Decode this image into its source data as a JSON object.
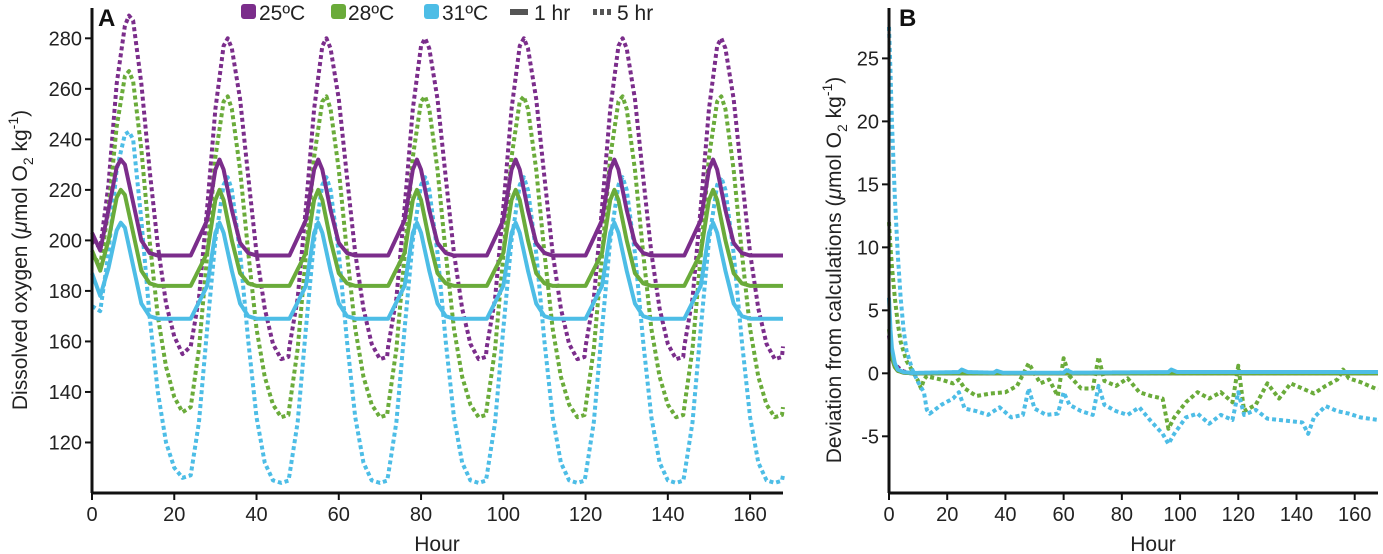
{
  "figure": {
    "legend": {
      "temps": [
        {
          "label": "25ºC",
          "color": "#7b2d8b"
        },
        {
          "label": "28ºC",
          "color": "#6aab3a"
        },
        {
          "label": "31ºC",
          "color": "#4dbde6"
        }
      ],
      "styles": [
        {
          "label": "1 hr",
          "dash": "solid"
        },
        {
          "label": "5 hr",
          "dash": "dotted"
        }
      ]
    }
  },
  "chart_data": [
    {
      "panel": "A",
      "type": "line",
      "title": "",
      "xlabel": "Hour",
      "ylabel": "Dissolved oxygen (μmol O2 kg-1)",
      "ylabel_parts": {
        "pre": "Dissolved oxygen (",
        "mu": "μ",
        "mol": "mol O",
        "sub": "2",
        "kg": " kg",
        "sup": "-1",
        "post": ")"
      },
      "xlim": [
        0,
        168
      ],
      "ylim": [
        100,
        292
      ],
      "xticks": [
        0,
        20,
        40,
        60,
        80,
        100,
        120,
        140,
        160
      ],
      "yticks": [
        120,
        140,
        160,
        180,
        200,
        220,
        240,
        260,
        280
      ],
      "period_hours": 24,
      "series": [
        {
          "name": "25ºC 1 hr",
          "temp": "25ºC",
          "interval": "1 hr",
          "color": "#7b2d8b",
          "dash": "solid",
          "x": [
            0,
            2,
            4,
            6,
            7,
            8,
            10,
            12,
            14,
            16,
            20,
            24,
            28,
            30,
            31,
            32,
            34,
            36,
            38,
            40,
            44,
            48
          ],
          "y": [
            203,
            196,
            212,
            229,
            232,
            230,
            215,
            200,
            195,
            194,
            194,
            194,
            208,
            228,
            232,
            228,
            212,
            199,
            195,
            194,
            194,
            194
          ]
        },
        {
          "name": "28ºC 1 hr",
          "temp": "28ºC",
          "interval": "1 hr",
          "color": "#6aab3a",
          "dash": "solid",
          "x": [
            0,
            2,
            4,
            6,
            7,
            8,
            10,
            12,
            14,
            16,
            20,
            24,
            28,
            30,
            31,
            32,
            34,
            36,
            38,
            40,
            44,
            48
          ],
          "y": [
            196,
            188,
            200,
            217,
            220,
            218,
            203,
            188,
            183,
            182,
            182,
            182,
            195,
            216,
            220,
            216,
            200,
            187,
            183,
            182,
            182,
            182
          ]
        },
        {
          "name": "31ºC 1 hr",
          "temp": "31ºC",
          "interval": "1 hr",
          "color": "#4dbde6",
          "dash": "solid",
          "x": [
            0,
            2,
            4,
            6,
            7,
            8,
            10,
            12,
            14,
            16,
            20,
            24,
            28,
            30,
            31,
            32,
            34,
            36,
            38,
            40,
            44,
            48
          ],
          "y": [
            187,
            178,
            189,
            204,
            207,
            205,
            190,
            175,
            170,
            169,
            169,
            169,
            182,
            203,
            207,
            203,
            188,
            175,
            170,
            169,
            169,
            169
          ]
        },
        {
          "name": "25ºC 5 hr",
          "temp": "25ºC",
          "interval": "5 hr",
          "color": "#7b2d8b",
          "dash": "dotted",
          "x": [
            0,
            2,
            4,
            6,
            8,
            9,
            10,
            12,
            14,
            16,
            18,
            20,
            22,
            24,
            26,
            28,
            30,
            32,
            33,
            34,
            36,
            38,
            40,
            42,
            44,
            46,
            48
          ],
          "y": [
            200,
            197,
            222,
            262,
            285,
            289,
            287,
            262,
            228,
            198,
            175,
            162,
            155,
            158,
            177,
            213,
            252,
            277,
            280,
            276,
            256,
            225,
            195,
            173,
            159,
            153,
            154
          ]
        },
        {
          "name": "28ºC 5 hr",
          "temp": "28ºC",
          "interval": "5 hr",
          "color": "#6aab3a",
          "dash": "dotted",
          "x": [
            0,
            2,
            4,
            6,
            8,
            9,
            10,
            12,
            14,
            16,
            18,
            20,
            22,
            24,
            26,
            28,
            30,
            32,
            33,
            34,
            36,
            38,
            40,
            42,
            44,
            46,
            48
          ],
          "y": [
            195,
            190,
            212,
            245,
            265,
            267,
            263,
            236,
            200,
            170,
            150,
            138,
            132,
            134,
            157,
            194,
            233,
            255,
            257,
            252,
            228,
            195,
            165,
            146,
            135,
            130,
            131
          ]
        },
        {
          "name": "31ºC 5 hr",
          "temp": "31ºC",
          "interval": "5 hr",
          "color": "#4dbde6",
          "dash": "dotted",
          "x": [
            0,
            2,
            4,
            6,
            8,
            9,
            10,
            12,
            14,
            16,
            18,
            20,
            22,
            24,
            26,
            28,
            30,
            32,
            33,
            34,
            36,
            38,
            40,
            42,
            44,
            46,
            48
          ],
          "y": [
            174,
            172,
            195,
            228,
            242,
            243,
            240,
            208,
            170,
            140,
            120,
            110,
            106,
            107,
            128,
            165,
            200,
            222,
            225,
            220,
            195,
            160,
            130,
            112,
            105,
            104,
            105
          ]
        }
      ]
    },
    {
      "panel": "B",
      "type": "line",
      "title": "",
      "xlabel": "Hour",
      "ylabel": "Deviation from calculations (μmol O2 kg-1)",
      "ylabel_parts": {
        "pre": "Deviation from calculations (",
        "mu": "μ",
        "mol": "mol O",
        "sub": "2",
        "kg": " kg",
        "sup": "-1",
        "post": ")"
      },
      "xlim": [
        0,
        168
      ],
      "ylim": [
        -9.5,
        29
      ],
      "xticks": [
        0,
        20,
        40,
        60,
        80,
        100,
        120,
        140,
        160
      ],
      "yticks": [
        -5,
        0,
        5,
        10,
        15,
        20,
        25
      ],
      "series": [
        {
          "name": "25ºC 1 hr",
          "color": "#7b2d8b",
          "dash": "solid",
          "x": [
            0,
            0.5,
            1,
            2,
            3,
            5,
            8,
            12,
            168
          ],
          "y": [
            3,
            2,
            1.2,
            0.5,
            0.2,
            0.05,
            0,
            0,
            0
          ]
        },
        {
          "name": "28ºC 1 hr",
          "color": "#6aab3a",
          "dash": "solid",
          "x": [
            0,
            0.5,
            1,
            2,
            3,
            5,
            8,
            12,
            168
          ],
          "y": [
            3.5,
            2.3,
            1.3,
            0.5,
            0.2,
            0.05,
            0,
            0,
            0
          ]
        },
        {
          "name": "31ºC 1 hr",
          "color": "#4dbde6",
          "dash": "solid",
          "x": [
            0,
            0.5,
            1,
            2,
            3,
            5,
            8,
            12,
            24,
            25,
            27,
            36,
            37,
            39,
            60,
            61,
            63,
            96,
            97,
            99,
            168
          ],
          "y": [
            6,
            3.5,
            2,
            0.8,
            0.3,
            0.1,
            0.03,
            0.05,
            0.1,
            0.3,
            0.1,
            0.05,
            0.2,
            0.05,
            0.05,
            0.25,
            0.05,
            0.1,
            0.3,
            0.1,
            0.1
          ]
        },
        {
          "name": "25ºC 5 hr",
          "color": "#7b2d8b",
          "dash": "dotted",
          "x": [
            0,
            1,
            2,
            3,
            4,
            5,
            7,
            9,
            12,
            168
          ],
          "y": [
            1.5,
            1.2,
            0.8,
            0.5,
            0.3,
            0.15,
            0.05,
            0,
            0,
            0
          ]
        },
        {
          "name": "28ºC 5 hr",
          "color": "#6aab3a",
          "dash": "dotted",
          "x": [
            0,
            0.5,
            1,
            2,
            3,
            4,
            6,
            8,
            10,
            11,
            12,
            13,
            14,
            18,
            22,
            24,
            26,
            30,
            35,
            40,
            44,
            48,
            52,
            55,
            58,
            60,
            62,
            66,
            70,
            72,
            74,
            78,
            82,
            86,
            90,
            94,
            96,
            98,
            102,
            106,
            110,
            114,
            118,
            120,
            122,
            126,
            130,
            134,
            138,
            142,
            146,
            150,
            154,
            156,
            158,
            162,
            168
          ],
          "y": [
            12,
            10,
            8.5,
            6,
            4,
            2.5,
            1,
            0.2,
            -0.6,
            -1.2,
            -0.5,
            -0.2,
            -0.3,
            -0.5,
            -0.8,
            -0.5,
            -1.2,
            -1.8,
            -1.6,
            -1.5,
            -1,
            0.8,
            -0.8,
            -0.5,
            -1.8,
            1.2,
            -0.2,
            -1.2,
            -1.2,
            1.3,
            -0.6,
            -1,
            -0.4,
            -1.5,
            -1.8,
            -2,
            -4.4,
            -3.5,
            -2.3,
            -1.5,
            -2,
            -1.5,
            -2.3,
            0.6,
            -3,
            -2.5,
            -0.8,
            -2,
            -0.8,
            -1.2,
            -1.6,
            -1,
            -0.5,
            0.3,
            -0.4,
            -0.7,
            -1.3
          ]
        },
        {
          "name": "31ºC 5 hr",
          "color": "#4dbde6",
          "dash": "dotted",
          "x": [
            0,
            0.5,
            1,
            2,
            3,
            4,
            5,
            6,
            8,
            10,
            12,
            13,
            14,
            18,
            22,
            24,
            26,
            30,
            34,
            38,
            42,
            46,
            48,
            50,
            54,
            58,
            60,
            62,
            66,
            70,
            72,
            74,
            78,
            82,
            86,
            90,
            94,
            96,
            98,
            102,
            106,
            110,
            114,
            118,
            120,
            122,
            126,
            130,
            134,
            138,
            142,
            144,
            146,
            150,
            154,
            158,
            162,
            168
          ],
          "y": [
            27.5,
            24,
            20,
            14,
            9.5,
            6,
            3.5,
            1.8,
            0.3,
            -0.7,
            -1.5,
            -2.9,
            -3.2,
            -2.5,
            -2,
            -1.5,
            -2.8,
            -3,
            -3.3,
            -2.7,
            -3.5,
            -3.3,
            -1.2,
            -2.8,
            -3.3,
            -3.2,
            -1.5,
            -2.5,
            -3,
            -3.3,
            -1,
            -2.5,
            -3,
            -3.3,
            -2.7,
            -3.8,
            -4.8,
            -5.6,
            -4.8,
            -3.5,
            -3.2,
            -4,
            -3.3,
            -3.7,
            -1.5,
            -3.3,
            -2.9,
            -3.6,
            -3.7,
            -3.8,
            -3.9,
            -4.8,
            -3.5,
            -2.6,
            -3,
            -3.2,
            -3.5,
            -3.7
          ]
        }
      ]
    }
  ]
}
